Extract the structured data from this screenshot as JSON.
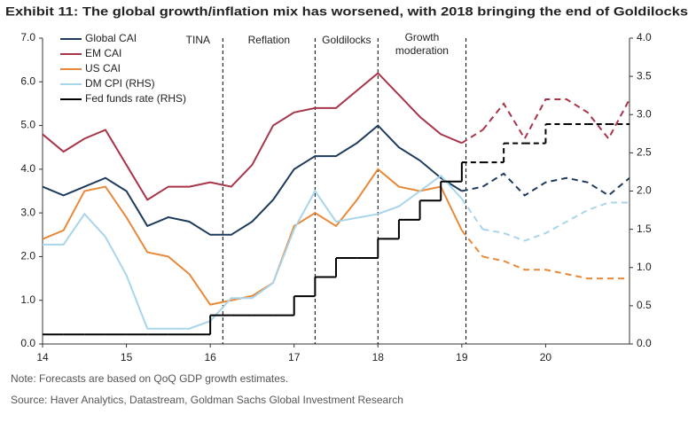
{
  "chart_data": {
    "type": "line",
    "title": "Exhibit 11: The global growth/inflation mix has worsened, with 2018 bringing the end of Goldilocks",
    "notes": [
      "Note: Forecasts are based on QoQ GDP growth estimates.",
      "Source: Haver Analytics, Datastream, Goldman Sachs Global Investment Research"
    ],
    "x": [
      14,
      14.25,
      14.5,
      14.75,
      15,
      15.25,
      15.5,
      15.75,
      16,
      16.25,
      16.5,
      16.75,
      17,
      17.25,
      17.5,
      17.75,
      18,
      18.25,
      18.5,
      18.75,
      19,
      19.25,
      19.5,
      19.75,
      20,
      20.25,
      20.5,
      20.75,
      21
    ],
    "xlim": [
      14,
      21
    ],
    "xticks": [
      14,
      15,
      16,
      17,
      18,
      19,
      20
    ],
    "ylim": [
      0,
      7
    ],
    "yticks": [
      {
        "value": 0,
        "label": "0.0"
      },
      {
        "value": 1,
        "label": "1.0"
      },
      {
        "value": 2,
        "label": "2.0"
      },
      {
        "value": 3,
        "label": "3.0"
      },
      {
        "value": 4,
        "label": "4.0"
      },
      {
        "value": 5,
        "label": "5.0"
      },
      {
        "value": 6,
        "label": "6.0"
      },
      {
        "value": 7,
        "label": "7.0"
      }
    ],
    "y2lim": [
      0,
      4
    ],
    "y2ticks": [
      {
        "value": 0,
        "label": "0.0"
      },
      {
        "value": 0.5,
        "label": "0.5"
      },
      {
        "value": 1,
        "label": "1.0"
      },
      {
        "value": 1.5,
        "label": "1.5"
      },
      {
        "value": 2,
        "label": "2.0"
      },
      {
        "value": 2.5,
        "label": "2.5"
      },
      {
        "value": 3,
        "label": "3.0"
      },
      {
        "value": 3.5,
        "label": "3.5"
      },
      {
        "value": 4,
        "label": "4.0"
      }
    ],
    "vlines": [
      16.15,
      17.25,
      18.0,
      19.05
    ],
    "annotations": [
      [
        "TINA"
      ],
      [
        "Reflation"
      ],
      [
        "Goldilocks"
      ],
      [
        "Growth",
        "moderation"
      ]
    ],
    "series": [
      {
        "name": "Global CAI",
        "color": "#1f3b5c",
        "values": [
          3.6,
          3.4,
          3.6,
          3.8,
          3.5,
          2.7,
          2.9,
          2.8,
          2.5,
          2.5,
          2.8,
          3.3,
          4.0,
          4.3,
          4.3,
          4.6,
          5.0,
          4.5,
          4.2,
          3.8,
          3.5,
          3.6,
          3.9,
          3.4,
          3.7,
          3.8,
          3.7,
          3.4,
          3.8
        ]
      },
      {
        "name": "EM CAI",
        "color": "#a8344a",
        "values": [
          4.8,
          4.4,
          4.7,
          4.9,
          4.1,
          3.3,
          3.6,
          3.6,
          3.7,
          3.6,
          4.1,
          5.0,
          5.3,
          5.4,
          5.4,
          5.8,
          6.2,
          5.7,
          5.2,
          4.8,
          4.6,
          4.9,
          5.5,
          4.7,
          5.6,
          5.6,
          5.3,
          4.7,
          5.6
        ]
      },
      {
        "name": "US CAI",
        "color": "#e8893a",
        "values": [
          2.4,
          2.6,
          3.5,
          3.6,
          2.9,
          2.1,
          2.0,
          1.6,
          0.9,
          1.0,
          1.1,
          1.4,
          2.7,
          3.0,
          2.7,
          3.3,
          4.0,
          3.6,
          3.5,
          3.6,
          2.6,
          2.0,
          1.9,
          1.7,
          1.7,
          1.6,
          1.5,
          1.5,
          1.5
        ]
      },
      {
        "name": "DM CPI (RHS)",
        "color": "#a9d5ea",
        "axis": "y2",
        "values": [
          1.3,
          1.3,
          1.7,
          1.4,
          0.9,
          0.2,
          0.2,
          0.2,
          0.3,
          0.6,
          0.6,
          0.8,
          1.5,
          2.0,
          1.6,
          1.65,
          1.7,
          1.8,
          2.0,
          2.2,
          1.9,
          1.5,
          1.45,
          1.35,
          1.45,
          1.6,
          1.75,
          1.85,
          1.85
        ]
      },
      {
        "name": "Fed funds rate (RHS)",
        "color": "#000000",
        "axis": "y2",
        "step": true,
        "values": [
          0.125,
          0.125,
          0.125,
          0.125,
          0.125,
          0.125,
          0.125,
          0.125,
          0.375,
          0.375,
          0.375,
          0.375,
          0.625,
          0.875,
          1.125,
          1.125,
          1.375,
          1.625,
          1.875,
          2.125,
          2.375,
          2.375,
          2.625,
          2.625,
          2.875,
          2.875,
          2.875,
          2.875,
          2.875
        ]
      }
    ]
  }
}
